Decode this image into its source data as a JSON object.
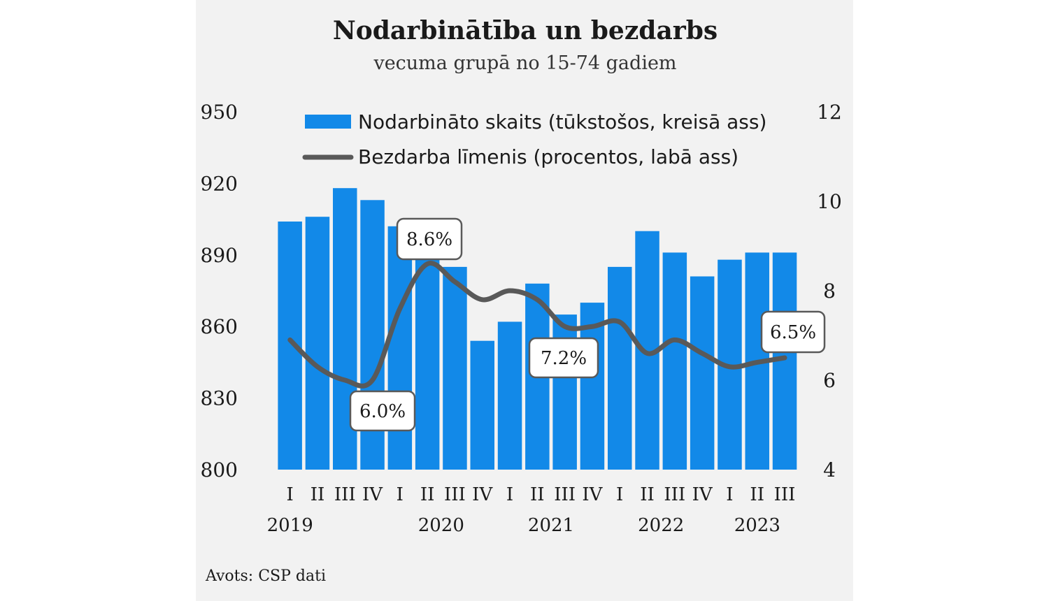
{
  "chart_data": {
    "type": "bar+line",
    "title": "Nodarbinātība un bezdarbs",
    "subtitle": "vecuma grupā no 15-74 gadiem",
    "categories": [
      "I",
      "II",
      "III",
      "IV",
      "I",
      "II",
      "III",
      "IV",
      "I",
      "II",
      "III",
      "IV",
      "I",
      "II",
      "III",
      "IV",
      "I",
      "II",
      "III"
    ],
    "years": [
      {
        "label": "2019",
        "start": 0,
        "end": 3
      },
      {
        "label": "2020",
        "start": 4,
        "end": 7
      },
      {
        "label": "2021",
        "start": 8,
        "end": 11
      },
      {
        "label": "2022",
        "start": 12,
        "end": 15
      },
      {
        "label": "2023",
        "start": 16,
        "end": 18
      }
    ],
    "series": [
      {
        "name": "Nodarbināto skaits (tūkstošos, kreisā ass)",
        "type": "bar",
        "axis": "left",
        "color": "#1289e8",
        "values": [
          904,
          906,
          918,
          913,
          902,
          892,
          885,
          854,
          862,
          878,
          865,
          870,
          885,
          900,
          891,
          881,
          888,
          891,
          891
        ]
      },
      {
        "name": "Bezdarba līmenis (procentos, labā ass)",
        "type": "line",
        "axis": "right",
        "color": "#595959",
        "values": [
          6.9,
          6.3,
          6.0,
          6.0,
          7.6,
          8.6,
          8.2,
          7.8,
          8.0,
          7.8,
          7.2,
          7.2,
          7.3,
          6.6,
          6.9,
          6.6,
          6.3,
          6.4,
          6.5
        ]
      }
    ],
    "left_axis": {
      "ylim": [
        800,
        950
      ],
      "ticks": [
        "800",
        "830",
        "860",
        "890",
        "920",
        "950"
      ]
    },
    "right_axis": {
      "ylim": [
        4,
        12
      ],
      "ticks": [
        "4",
        "6",
        "8",
        "10",
        "12"
      ]
    },
    "annotations": [
      {
        "text": "8.6%",
        "index": 5
      },
      {
        "text": "6.0%",
        "index": 3
      },
      {
        "text": "7.2%",
        "index": 10
      },
      {
        "text": "6.5%",
        "index": 18
      }
    ],
    "legend_position": "top-right",
    "source": "Avots: CSP dati"
  }
}
